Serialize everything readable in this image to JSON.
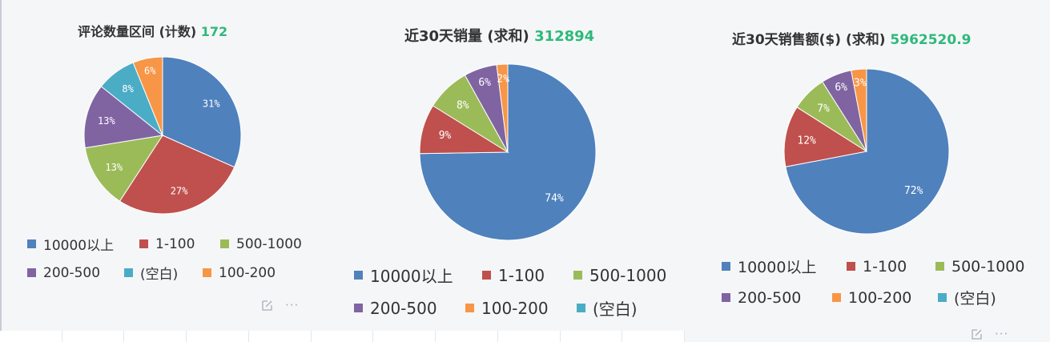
{
  "colors": {
    "10000以上": "#4f81bd",
    "1-100": "#c0504d",
    "500-1000": "#9bbb59",
    "200-500": "#8064a2",
    "(空白)": "#4bacc6",
    "100-200": "#f79646"
  },
  "panels": [
    {
      "title": "评论数量区间 (计数)",
      "total": "172",
      "legend": [
        [
          "10000以上",
          "1-100",
          "500-1000"
        ],
        [
          "200-500",
          "(空白)",
          "100-200"
        ]
      ]
    },
    {
      "title": "近30天销量 (求和)",
      "total": "312894",
      "legend": [
        [
          "10000以上",
          "1-100",
          "500-1000"
        ],
        [
          "200-500",
          "100-200",
          "(空白)"
        ]
      ]
    },
    {
      "title": "近30天销售额($) (求和)",
      "total": "5962520.9",
      "legend": [
        [
          "10000以上",
          "1-100",
          "500-1000"
        ],
        [
          "200-500",
          "100-200",
          "(空白)"
        ]
      ]
    }
  ],
  "icons": {
    "edit": "edit-icon",
    "more": "more-icon"
  },
  "chart_data": [
    {
      "type": "pie",
      "title": "评论数量区间 (计数) 172",
      "categories": [
        "10000以上",
        "1-100",
        "500-1000",
        "200-500",
        "(空白)",
        "100-200"
      ],
      "values": [
        31,
        27,
        13,
        13,
        8,
        6
      ],
      "labels": [
        "31%",
        "27%",
        "13%",
        "13%",
        "8%",
        "6%"
      ],
      "legend": "bottom"
    },
    {
      "type": "pie",
      "title": "近30天销量 (求和) 312894",
      "categories": [
        "10000以上",
        "1-100",
        "500-1000",
        "200-500",
        "100-200"
      ],
      "values": [
        74,
        9,
        8,
        6,
        2
      ],
      "labels": [
        "74%",
        "9%",
        "8%",
        "6%",
        "2%"
      ],
      "legend": "bottom"
    },
    {
      "type": "pie",
      "title": "近30天销售额($) (求和) 5962520.9",
      "categories": [
        "10000以上",
        "1-100",
        "500-1000",
        "200-500",
        "100-200"
      ],
      "values": [
        72,
        12,
        7,
        6,
        3
      ],
      "labels": [
        "72%",
        "12%",
        "7%",
        "6%",
        "3%"
      ],
      "legend": "bottom"
    }
  ]
}
